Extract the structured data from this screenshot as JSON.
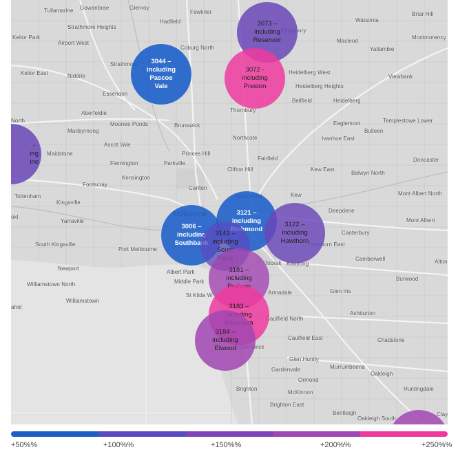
{
  "map": {
    "places": [
      {
        "name": "Tullamarine"
      },
      {
        "name": "Gowanbrae"
      },
      {
        "name": "Glenroy"
      },
      {
        "name": "Fawkner"
      },
      {
        "name": "Hadfield"
      },
      {
        "name": "Strathmore Heights"
      },
      {
        "name": "Kingsbury"
      },
      {
        "name": "Watsonia"
      },
      {
        "name": "Briar Hill"
      },
      {
        "name": "Keilor Park"
      },
      {
        "name": "Airport West"
      },
      {
        "name": "Coburg North"
      },
      {
        "name": "Macleod"
      },
      {
        "name": "Yallambie"
      },
      {
        "name": "Montmorency"
      },
      {
        "name": "Strathmore"
      },
      {
        "name": "Keilor East"
      },
      {
        "name": "Niddrie"
      },
      {
        "name": "Heidelberg West"
      },
      {
        "name": "Viewbank"
      },
      {
        "name": "Essendon"
      },
      {
        "name": "Heidelberg Heights"
      },
      {
        "name": "Bellfield"
      },
      {
        "name": "Heidelberg"
      },
      {
        "name": "Aberfeldie"
      },
      {
        "name": "Thornbury"
      },
      {
        "name": "Templestowe Lower"
      },
      {
        "name": "North"
      },
      {
        "name": "Moonee Ponds"
      },
      {
        "name": "Brunswick"
      },
      {
        "name": "Eaglemont"
      },
      {
        "name": "Maribyrnong"
      },
      {
        "name": "Bulleen"
      },
      {
        "name": "Northcote"
      },
      {
        "name": "Ivanhoe East"
      },
      {
        "name": "Maidstone"
      },
      {
        "name": "Ascot Vale"
      },
      {
        "name": "Princes Hill"
      },
      {
        "name": "Fairfield"
      },
      {
        "name": "Doncaster"
      },
      {
        "name": "Flemington"
      },
      {
        "name": "Parkville"
      },
      {
        "name": "Clifton Hill"
      },
      {
        "name": "Kew East"
      },
      {
        "name": "Balwyn North"
      },
      {
        "name": "Kensington"
      },
      {
        "name": "Footscray"
      },
      {
        "name": "Carlton"
      },
      {
        "name": "Tottenham"
      },
      {
        "name": "Abbotsford"
      },
      {
        "name": "Kew"
      },
      {
        "name": "Mont Albert North"
      },
      {
        "name": "Kingsville"
      },
      {
        "name": "Deepdene"
      },
      {
        "name": "Yarraville"
      },
      {
        "name": "Melbourne"
      },
      {
        "name": "Mont Albert"
      },
      {
        "name": "Canterbury"
      },
      {
        "name": "South Kingsville"
      },
      {
        "name": "Port Melbourne"
      },
      {
        "name": "Hawthorn East"
      },
      {
        "name": "Newport"
      },
      {
        "name": "Albert Park"
      },
      {
        "name": "Toorak"
      },
      {
        "name": "Kooyong"
      },
      {
        "name": "Camberwell"
      },
      {
        "name": "Middle Park"
      },
      {
        "name": "Burwood"
      },
      {
        "name": "Williamstown North"
      },
      {
        "name": "St Kilda W"
      },
      {
        "name": "Armadale"
      },
      {
        "name": "Glen Iris"
      },
      {
        "name": "Williamstown"
      },
      {
        "name": "Ashburton"
      },
      {
        "name": "Caulfield North"
      },
      {
        "name": "Caulfield East"
      },
      {
        "name": "Chadstone"
      },
      {
        "name": "Elsternwick"
      },
      {
        "name": "Gardenvale"
      },
      {
        "name": "Glen Huntly"
      },
      {
        "name": "Murrumbeena"
      },
      {
        "name": "Oakleigh"
      },
      {
        "name": "Ormond"
      },
      {
        "name": "Huntingdale"
      },
      {
        "name": "Brighton"
      },
      {
        "name": "McKinnon"
      },
      {
        "name": "Brighton East"
      },
      {
        "name": "Bentleigh"
      },
      {
        "name": "Oakleigh South"
      },
      {
        "name": "Clayton"
      },
      {
        "name": "Altona"
      },
      {
        "name": "okl"
      },
      {
        "name": "ahol"
      }
    ],
    "bubbles": [
      {
        "id": "3073",
        "lines": [
          "3073 –",
          "including",
          "Reservoir"
        ],
        "color": "#6a46b8",
        "alpha": 0.85,
        "tier": "+150%"
      },
      {
        "id": "3044",
        "lines": [
          "3044 –",
          "including",
          "Pascoe",
          "Vale"
        ],
        "color": "#1c5fc9",
        "alpha": 0.9,
        "tier": "+50%"
      },
      {
        "id": "3072",
        "lines": [
          "3072 -",
          "including",
          "Preston"
        ],
        "color": "#ee3a9e",
        "alpha": 0.85,
        "tier": "+250%"
      },
      {
        "id": "left",
        "lines": [
          "-",
          "ing",
          "ine"
        ],
        "color": "#6a46b8",
        "alpha": 0.85,
        "tier": "+150%"
      },
      {
        "id": "3006",
        "lines": [
          "3006 –",
          "including",
          "Southbank"
        ],
        "color": "#1c5fc9",
        "alpha": 0.88,
        "tier": "+50%"
      },
      {
        "id": "3121",
        "lines": [
          "3121 –",
          "including",
          "Richmond"
        ],
        "color": "#1c5fc9",
        "alpha": 0.88,
        "tier": "+50%"
      },
      {
        "id": "3122",
        "lines": [
          "3122 –",
          "including",
          "Hawthorn"
        ],
        "color": "#6a46b8",
        "alpha": 0.82,
        "tier": "+150%"
      },
      {
        "id": "3141",
        "lines": [
          "3141 –",
          "including",
          "South",
          "Yarra"
        ],
        "color": "#5a4bc0",
        "alpha": 0.75,
        "tier": "+100%"
      },
      {
        "id": "3181",
        "lines": [
          "3181 –",
          "including",
          "Prahran"
        ],
        "color": "#a146b2",
        "alpha": 0.8,
        "tier": "+200%"
      },
      {
        "id": "3183",
        "lines": [
          "3183 –",
          "including",
          "Balaclava"
        ],
        "color": "#ee3a9e",
        "alpha": 0.85,
        "tier": "+250%"
      },
      {
        "id": "3184",
        "lines": [
          "3184 –",
          "including",
          "Elwood"
        ],
        "color": "#a146b2",
        "alpha": 0.85,
        "tier": "+200%"
      },
      {
        "id": "corner",
        "lines": [
          ""
        ],
        "color": "#a146b2",
        "alpha": 0.85,
        "tier": "+200%"
      }
    ]
  },
  "legend": {
    "segments": [
      {
        "color": "#1c5fc9"
      },
      {
        "color": "#5a4bc0"
      },
      {
        "color": "#7d45b8"
      },
      {
        "color": "#a146b2"
      },
      {
        "color": "#ee3a9e"
      }
    ],
    "labels": [
      "+50%%",
      "+100%%",
      "+150%%",
      "+200%%",
      "+250%%"
    ]
  }
}
